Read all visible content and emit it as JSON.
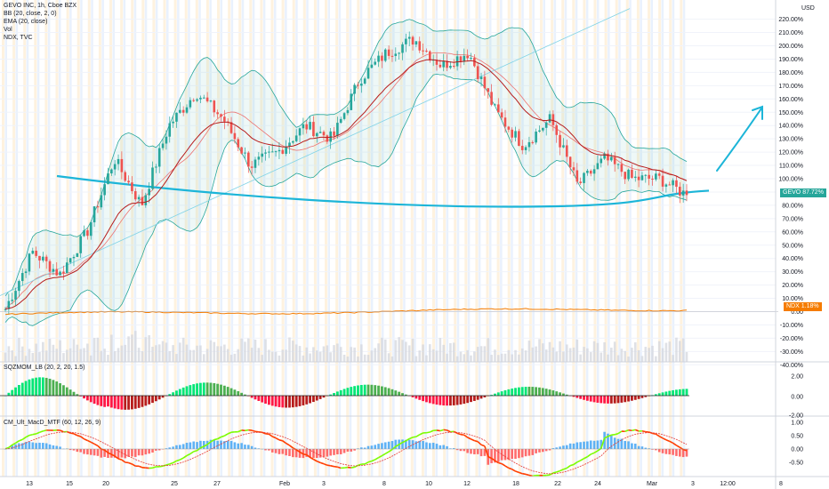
{
  "header": {
    "title": "GEVO INC, 1h, Cboe BZX",
    "indicators": [
      "BB (20, close, 2, 0)",
      "EMA (20, close)",
      "Vol",
      "NDX, TVC"
    ]
  },
  "colors": {
    "up": "#26a69a",
    "down": "#ef5350",
    "bb_band": "#26a69a",
    "ema": "#b71c1c",
    "ndx": "#f57c00",
    "drawing": "#1cb5d8",
    "trendline": "#7fd3e6",
    "sqz_up_strong": "#00e676",
    "sqz_up_weak": "#4caf50",
    "sqz_down_strong": "#ff1744",
    "sqz_down_weak": "#b71c1c",
    "macd_up": "#7cfc00",
    "macd_down": "#ff3d00",
    "session_orange": "#fde8c4",
    "session_blue": "#d7e6fb"
  },
  "price_axis": {
    "unit": "USD",
    "labels": [
      "220.00%",
      "210.00%",
      "200.00%",
      "190.00%",
      "180.00%",
      "170.00%",
      "160.00%",
      "150.00%",
      "140.00%",
      "130.00%",
      "120.00%",
      "110.00%",
      "100.00%",
      "90.00%",
      "80.00%",
      "70.00%",
      "60.00%",
      "50.00%",
      "40.00%",
      "30.00%",
      "20.00%",
      "10.00%",
      "0.00",
      "-10.00%",
      "-20.00%",
      "-30.00%",
      "-40.00%"
    ]
  },
  "badges": {
    "gevo": {
      "symbol": "GEVO",
      "value": "87.72%"
    },
    "ndx": {
      "symbol": "NDX",
      "value": "1.18%"
    }
  },
  "sqz_pane": {
    "title": "SQZMOM_LB (20, 2, 20, 1.5)",
    "axis_labels": [
      "2.00",
      "0.00",
      "-2.00"
    ]
  },
  "macd_pane": {
    "title": "CM_Ult_MacD_MTF (60, 12, 26, 9)",
    "axis_labels": [
      "1.00",
      "0.50",
      "0.00",
      "-0.50"
    ]
  },
  "time_axis": {
    "labels": [
      "13",
      "15",
      "20",
      "25",
      "27",
      "Feb",
      "3",
      "8",
      "10",
      "12",
      "18",
      "22",
      "24",
      "Mar",
      "3",
      "12:00",
      "8"
    ]
  },
  "chart_data": {
    "type": "candlestick",
    "title": "GEVO INC, 1h, Cboe BZX",
    "ylabel": "USD",
    "y_scale": "percent",
    "ylim": [
      -40,
      222
    ],
    "series_keypoints": [
      {
        "x": "13",
        "y": 2
      },
      {
        "x": "15",
        "y": 45
      },
      {
        "x": "15",
        "y": 28
      },
      {
        "x": "20",
        "y": 60
      },
      {
        "x": "20",
        "y": 115
      },
      {
        "x": "20",
        "y": 80
      },
      {
        "x": "25",
        "y": 140
      },
      {
        "x": "25",
        "y": 165
      },
      {
        "x": "27",
        "y": 145
      },
      {
        "x": "Feb",
        "y": 110
      },
      {
        "x": "3",
        "y": 120
      },
      {
        "x": "3",
        "y": 140
      },
      {
        "x": "8",
        "y": 130
      },
      {
        "x": "8",
        "y": 175
      },
      {
        "x": "10",
        "y": 195
      },
      {
        "x": "10",
        "y": 205
      },
      {
        "x": "12",
        "y": 185
      },
      {
        "x": "12",
        "y": 195
      },
      {
        "x": "18",
        "y": 150
      },
      {
        "x": "18",
        "y": 125
      },
      {
        "x": "22",
        "y": 145
      },
      {
        "x": "22",
        "y": 95
      },
      {
        "x": "24",
        "y": 115
      },
      {
        "x": "24",
        "y": 100
      },
      {
        "x": "Mar",
        "y": 100
      },
      {
        "x": "3",
        "y": 87.72
      }
    ],
    "last_value": 87.72,
    "ndx_last": 1.18
  }
}
